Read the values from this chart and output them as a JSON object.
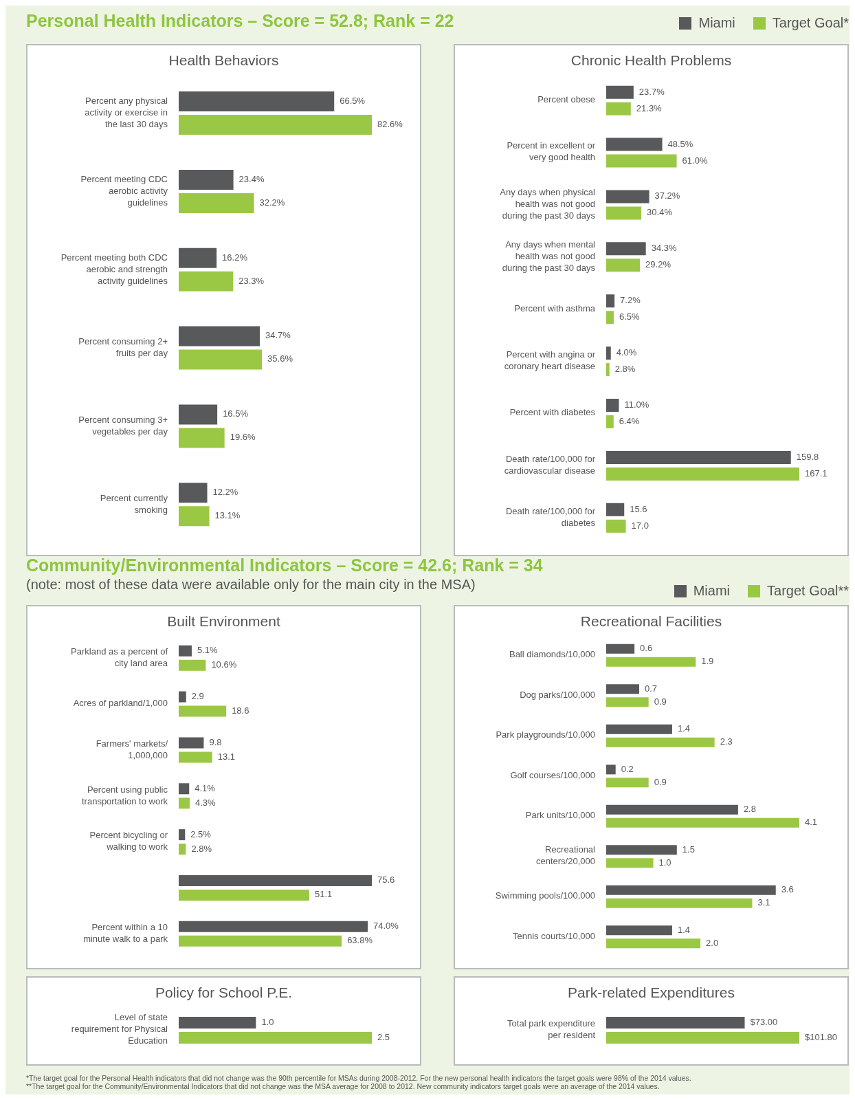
{
  "chart_data": [
    {
      "type": "bar",
      "orientation": "horizontal",
      "title": "Health Behaviors",
      "annotations": [
        "Personal Health Indicators – Score = 52.8; Rank = 22"
      ],
      "legend": false,
      "categories": [
        "Percent any physical activity or exercise in the last 30 days",
        "Percent meeting CDC aerobic activity guidelines",
        "Percent meeting both CDC aerobic and strength activity guidelines",
        "Percent consuming 2+ fruits per day",
        "Percent consuming 3+ vegetables per day",
        "Percent currently smoking"
      ],
      "series": [
        {
          "color": "#58595b",
          "values": [
            66.5,
            23.4,
            16.2,
            34.7,
            16.5,
            12.2
          ],
          "value_labels": [
            "66.5%",
            "23.4%",
            "16.2%",
            "34.7%",
            "16.5%",
            "12.2%"
          ]
        },
        {
          "color": "#9bc844",
          "values": [
            82.6,
            32.2,
            23.3,
            35.6,
            19.6,
            13.1
          ],
          "value_labels": [
            "82.6%",
            "32.2%",
            "23.3%",
            "35.6%",
            "19.6%",
            "13.1%"
          ]
        }
      ]
    },
    {
      "type": "bar",
      "orientation": "horizontal",
      "title": "Chronic Health Problems",
      "legend": "top right",
      "categories": [
        "Percent obese",
        "Percent in excellent or very good health",
        "Any days when physical health was not good during the past 30 days",
        "Any days when mental health was not good during the past 30 days",
        "Percent with asthma",
        "Percent with angina or coronary heart disease",
        "Percent with diabetes",
        "Death rate/100,000 for cardiovascular disease",
        "Death rate/100,000 for diabetes"
      ],
      "series": [
        {
          "name": "Miami",
          "color": "#58595b",
          "values": [
            23.7,
            48.5,
            37.2,
            34.3,
            7.2,
            4.0,
            11.0,
            159.8,
            15.6
          ],
          "value_labels": [
            "23.7%",
            "48.5%",
            "37.2%",
            "34.3%",
            "7.2%",
            "4.0%",
            "11.0%",
            "159.8",
            "15.6"
          ]
        },
        {
          "name": "Target Goal*",
          "color": "#9bc844",
          "values": [
            21.3,
            61.0,
            30.4,
            29.2,
            6.5,
            2.8,
            6.4,
            167.1,
            17.0
          ],
          "value_labels": [
            "21.3%",
            "61.0%",
            "30.4%",
            "29.2%",
            "6.5%",
            "2.8%",
            "6.4%",
            "167.1",
            "17.0"
          ]
        }
      ]
    },
    {
      "type": "bar",
      "orientation": "horizontal",
      "title": "Built Environment",
      "annotations": [
        "Community/Environmental Indicators – Score = 42.6; Rank = 34",
        "(note: most of these data were available only for the main city in the MSA)"
      ],
      "legend": false,
      "categories": [
        "Parkland as a percent of city land area",
        "Acres of parkland/1,000",
        "Farmers' markets/ 1,000,000",
        "Percent using public transportation to work",
        "Percent bicycling or walking to work",
        null,
        "Percent within a 10 minute walk to a park"
      ],
      "series": [
        {
          "color": "#58595b",
          "values": [
            5.1,
            2.9,
            9.8,
            4.1,
            2.5,
            75.6,
            74.0
          ],
          "value_labels": [
            "5.1%",
            "2.9",
            "9.8",
            "4.1%",
            "2.5%",
            "75.6",
            "74.0%"
          ]
        },
        {
          "color": "#9bc844",
          "values": [
            10.6,
            18.6,
            13.1,
            4.3,
            2.8,
            51.1,
            63.8
          ],
          "value_labels": [
            "10.6%",
            "18.6",
            "13.1",
            "4.3%",
            "2.8%",
            "51.1",
            "63.8%"
          ]
        }
      ]
    },
    {
      "type": "bar",
      "orientation": "horizontal",
      "title": "Recreational Facilities",
      "legend": "top right",
      "categories": [
        "Ball diamonds/10,000",
        "Dog parks/100,000",
        "Park playgrounds/10,000",
        "Golf courses/100,000",
        "Park units/10,000",
        "Recreational centers/20,000",
        "Swimming pools/100,000",
        "Tennis courts/10,000"
      ],
      "series": [
        {
          "name": "Miami",
          "color": "#58595b",
          "values": [
            0.6,
            0.7,
            1.4,
            0.2,
            2.8,
            1.5,
            3.6,
            1.4
          ],
          "value_labels": [
            "0.6",
            "0.7",
            "1.4",
            "0.2",
            "2.8",
            "1.5",
            "3.6",
            "1.4"
          ]
        },
        {
          "name": "Target Goal**",
          "color": "#9bc844",
          "values": [
            1.9,
            0.9,
            2.3,
            0.9,
            4.1,
            1.0,
            3.1,
            2.0
          ],
          "value_labels": [
            "1.9",
            "0.9",
            "2.3",
            "0.9",
            "4.1",
            "1.0",
            "3.1",
            "2.0"
          ]
        }
      ]
    },
    {
      "type": "bar",
      "orientation": "horizontal",
      "title": "Policy for School P.E.",
      "legend": false,
      "categories": [
        "Level of state requirement for Physical Education"
      ],
      "series": [
        {
          "color": "#58595b",
          "values": [
            1.0
          ],
          "value_labels": [
            "1.0"
          ]
        },
        {
          "color": "#9bc844",
          "values": [
            2.5
          ],
          "value_labels": [
            "2.5"
          ]
        }
      ]
    },
    {
      "type": "bar",
      "orientation": "horizontal",
      "title": "Park-related Expenditures",
      "legend": false,
      "annotations": [
        "*The target goal for the Personal Health indicators that did not change was the 90th percentile for MSAs during 2008-2012. For the new personal health indicators the target goals were 98% of the 2014 values.",
        "**The target goal for the Community/Environmental Indicators that did not change was the MSA average for 2008 to 2012. New community indicators target goals were an average of the 2014 values."
      ],
      "categories": [
        "Total park expenditure per resident"
      ],
      "series": [
        {
          "color": "#58595b",
          "values": [
            73.0
          ],
          "value_labels": [
            "$73.00"
          ]
        },
        {
          "color": "#9bc844",
          "values": [
            101.8
          ],
          "value_labels": [
            "$101.80"
          ]
        }
      ]
    }
  ]
}
